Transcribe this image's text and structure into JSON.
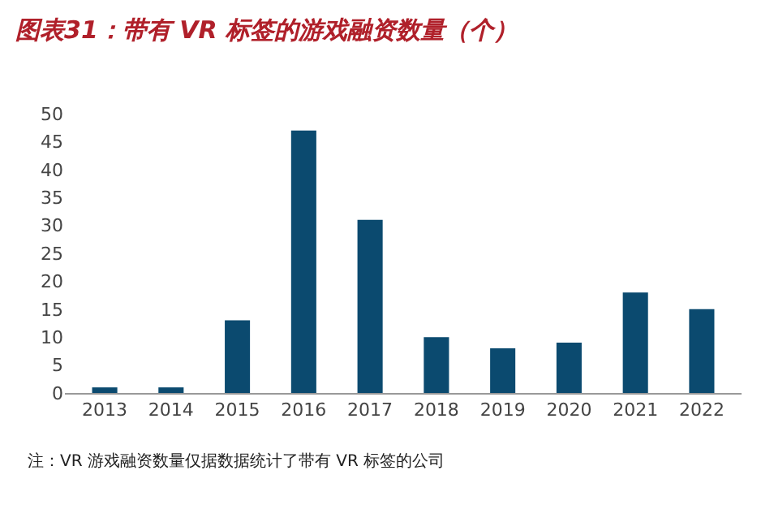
{
  "chart_data": {
    "type": "bar",
    "title": "图表31：带有 VR 标签的游戏融资数量（个）",
    "categories": [
      "2013",
      "2014",
      "2015",
      "2016",
      "2017",
      "2018",
      "2019",
      "2020",
      "2021",
      "2022"
    ],
    "values": [
      1,
      1,
      13,
      47,
      31,
      10,
      8,
      9,
      18,
      15
    ],
    "color": "#0b4a6f",
    "ylim": [
      0,
      50
    ],
    "yticks": [
      0,
      5,
      10,
      15,
      20,
      25,
      30,
      35,
      40,
      45,
      50
    ],
    "grid": false,
    "annotations": [
      "注：VR 游戏融资数量仅据数据统计了带有 VR 标签的公司"
    ]
  }
}
